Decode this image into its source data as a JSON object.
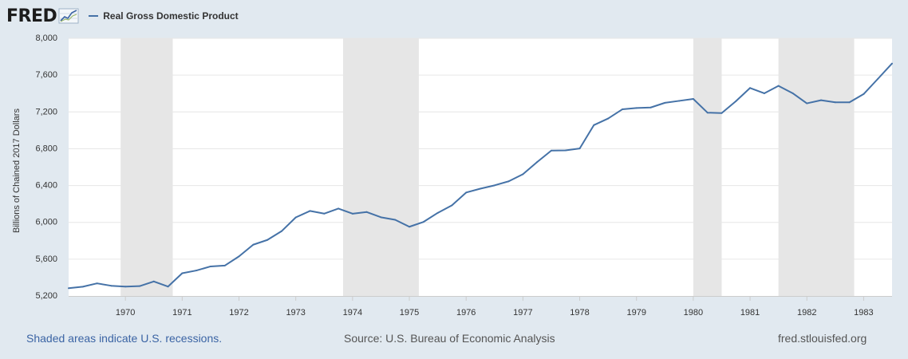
{
  "header": {
    "logo_text": "FRED",
    "legend_label": "Real Gross Domestic Product"
  },
  "footer": {
    "recession_note": "Shaded areas indicate U.S. recessions.",
    "source": "Source: U.S. Bureau of Economic Analysis",
    "site": "fred.stlouisfed.org"
  },
  "chart_data": {
    "type": "line",
    "title": "",
    "xlabel": "",
    "ylabel": "Billions of Chained 2017 Dollars",
    "ylim": [
      5200,
      8000
    ],
    "xlim": [
      1969.0,
      1983.5
    ],
    "y_ticks": [
      5200,
      5600,
      6000,
      6400,
      6800,
      7200,
      7600,
      8000
    ],
    "y_tick_labels": [
      "5,200",
      "5,600",
      "6,000",
      "6,400",
      "6,800",
      "7,200",
      "7,600",
      "8,000"
    ],
    "x_ticks": [
      "1970",
      "1971",
      "1972",
      "1973",
      "1974",
      "1975",
      "1976",
      "1977",
      "1978",
      "1979",
      "1980",
      "1981",
      "1982",
      "1983"
    ],
    "grid": true,
    "line_color": "#4572a7",
    "recession_color": "#e6e6e6",
    "recessions": [
      {
        "start": "1969-12",
        "end": "1970-11"
      },
      {
        "start": "1973-11",
        "end": "1975-03"
      },
      {
        "start": "1980-01",
        "end": "1980-07"
      },
      {
        "start": "1981-07",
        "end": "1982-11"
      }
    ],
    "series": [
      {
        "name": "Real Gross Domestic Product",
        "x": [
          "1969-01",
          "1969-04",
          "1969-07",
          "1969-10",
          "1970-01",
          "1970-04",
          "1970-07",
          "1970-10",
          "1971-01",
          "1971-04",
          "1971-07",
          "1971-10",
          "1972-01",
          "1972-04",
          "1972-07",
          "1972-10",
          "1973-01",
          "1973-04",
          "1973-07",
          "1973-10",
          "1974-01",
          "1974-04",
          "1974-07",
          "1974-10",
          "1975-01",
          "1975-04",
          "1975-07",
          "1975-10",
          "1976-01",
          "1976-04",
          "1976-07",
          "1976-10",
          "1977-01",
          "1977-04",
          "1977-07",
          "1977-10",
          "1978-01",
          "1978-04",
          "1978-07",
          "1978-10",
          "1979-01",
          "1979-04",
          "1979-07",
          "1979-10",
          "1980-01",
          "1980-04",
          "1980-07",
          "1980-10",
          "1981-01",
          "1981-04",
          "1981-07",
          "1981-10",
          "1982-01",
          "1982-04",
          "1982-07",
          "1982-10",
          "1983-01",
          "1983-04",
          "1983-07"
        ],
        "values": [
          5285,
          5301,
          5337,
          5311,
          5302,
          5307,
          5358,
          5302,
          5447,
          5477,
          5521,
          5530,
          5630,
          5757,
          5809,
          5904,
          6054,
          6124,
          6095,
          6150,
          6094,
          6112,
          6055,
          6028,
          5952,
          6005,
          6103,
          6185,
          6324,
          6366,
          6402,
          6446,
          6523,
          6655,
          6780,
          6782,
          6803,
          7057,
          7128,
          7228,
          7243,
          7248,
          7299,
          7320,
          7341,
          7192,
          7187,
          7316,
          7460,
          7402,
          7483,
          7403,
          7293,
          7327,
          7304,
          7304,
          7394,
          7559,
          7726
        ]
      }
    ]
  }
}
